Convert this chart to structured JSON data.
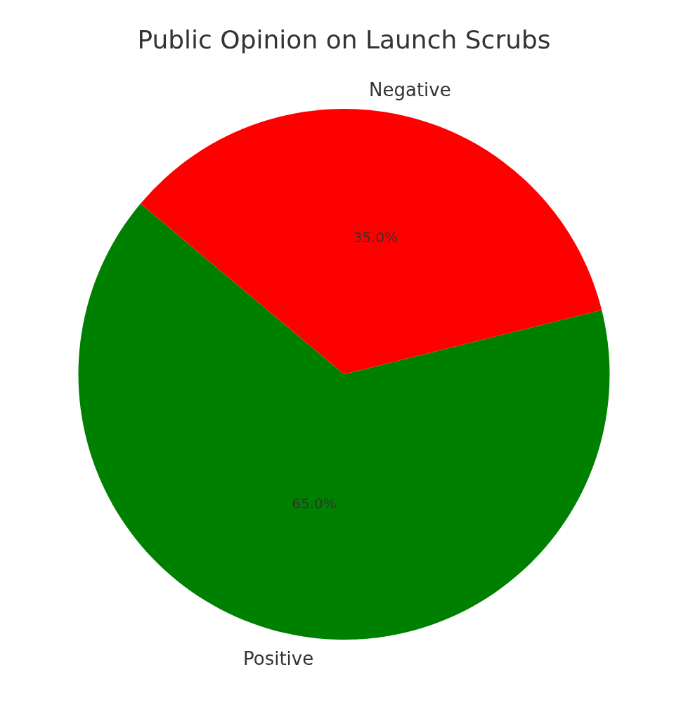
{
  "chart_data": {
    "type": "pie",
    "title": "Public Opinion on Launch Scrubs",
    "categories": [
      "Positive",
      "Negative"
    ],
    "values": [
      65,
      35
    ],
    "colors": [
      "#008000",
      "#ff0000"
    ],
    "value_labels": [
      "65.0%",
      "35.0%"
    ],
    "legend": false
  }
}
